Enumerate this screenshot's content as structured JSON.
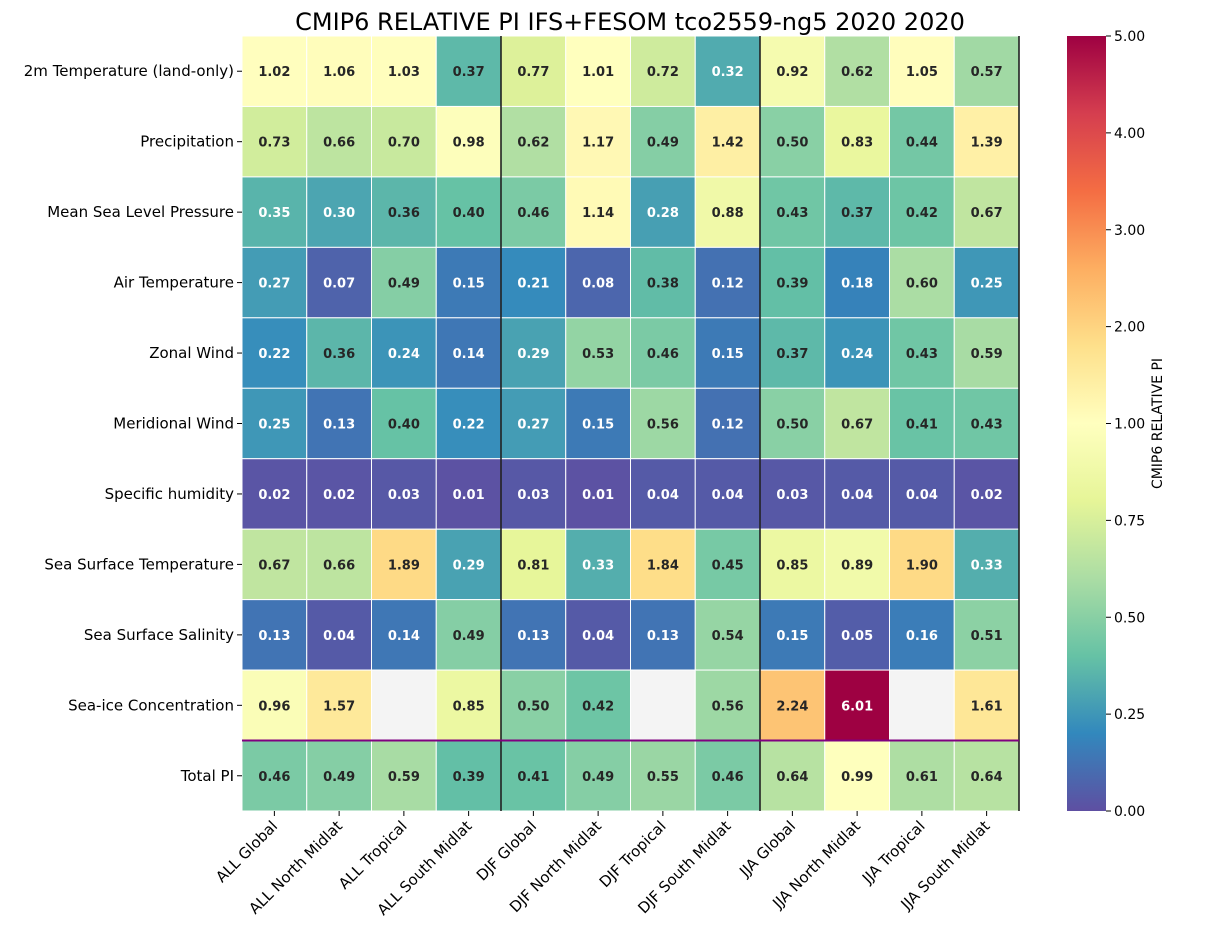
{
  "chart_data": {
    "type": "heatmap",
    "title": "CMIP6 RELATIVE PI IFS+FESOM tco2559-ng5 2020 2020",
    "rows": [
      "2m Temperature (land-only)",
      "Precipitation",
      "Mean Sea Level Pressure",
      "Air Temperature",
      "Zonal Wind",
      "Meridional Wind",
      "Specific humidity",
      "Sea Surface Temperature",
      "Sea Surface Salinity",
      "Sea-ice Concentration",
      "Total PI"
    ],
    "columns": [
      "ALL Global",
      "ALL North Midlat",
      "ALL Tropical",
      "ALL South Midlat",
      "DJF Global",
      "DJF North Midlat",
      "DJF Tropical",
      "DJF South Midlat",
      "JJA Global",
      "JJA North Midlat",
      "JJA Tropical",
      "JJA South Midlat"
    ],
    "values": [
      [
        1.02,
        1.06,
        1.03,
        0.37,
        0.77,
        1.01,
        0.72,
        0.32,
        0.92,
        0.62,
        1.05,
        0.57
      ],
      [
        0.73,
        0.66,
        0.7,
        0.98,
        0.62,
        1.17,
        0.49,
        1.42,
        0.5,
        0.83,
        0.44,
        1.39
      ],
      [
        0.35,
        0.3,
        0.36,
        0.4,
        0.46,
        1.14,
        0.28,
        0.88,
        0.43,
        0.37,
        0.42,
        0.67
      ],
      [
        0.27,
        0.07,
        0.49,
        0.15,
        0.21,
        0.08,
        0.38,
        0.12,
        0.39,
        0.18,
        0.6,
        0.25
      ],
      [
        0.22,
        0.36,
        0.24,
        0.14,
        0.29,
        0.53,
        0.46,
        0.15,
        0.37,
        0.24,
        0.43,
        0.59
      ],
      [
        0.25,
        0.13,
        0.4,
        0.22,
        0.27,
        0.15,
        0.56,
        0.12,
        0.5,
        0.67,
        0.41,
        0.43
      ],
      [
        0.02,
        0.02,
        0.03,
        0.01,
        0.03,
        0.01,
        0.04,
        0.04,
        0.03,
        0.04,
        0.04,
        0.02
      ],
      [
        0.67,
        0.66,
        1.89,
        0.29,
        0.81,
        0.33,
        1.84,
        0.45,
        0.85,
        0.89,
        1.9,
        0.33
      ],
      [
        0.13,
        0.04,
        0.14,
        0.49,
        0.13,
        0.04,
        0.13,
        0.54,
        0.15,
        0.05,
        0.16,
        0.51
      ],
      [
        0.96,
        1.57,
        null,
        0.85,
        0.5,
        0.42,
        null,
        0.56,
        2.24,
        6.01,
        null,
        1.61
      ],
      [
        0.46,
        0.49,
        0.59,
        0.39,
        0.41,
        0.49,
        0.55,
        0.46,
        0.64,
        0.99,
        0.61,
        0.64
      ]
    ],
    "colorbar": {
      "label": "CMIP6 RELATIVE PI",
      "ticks": [
        "0.00",
        "0.25",
        "0.50",
        "0.75",
        "1.00",
        "2.00",
        "3.00",
        "4.00",
        "5.00"
      ],
      "tick_values": [
        0,
        0.25,
        0.5,
        0.75,
        1,
        2,
        3,
        4,
        5
      ],
      "colormap": "Spectral_r",
      "missing_color": "#f4f4f4"
    },
    "separators": "vertical lines between ALL/DJF/JJA groups; purple line above Total PI",
    "separator_color": "#800080"
  }
}
